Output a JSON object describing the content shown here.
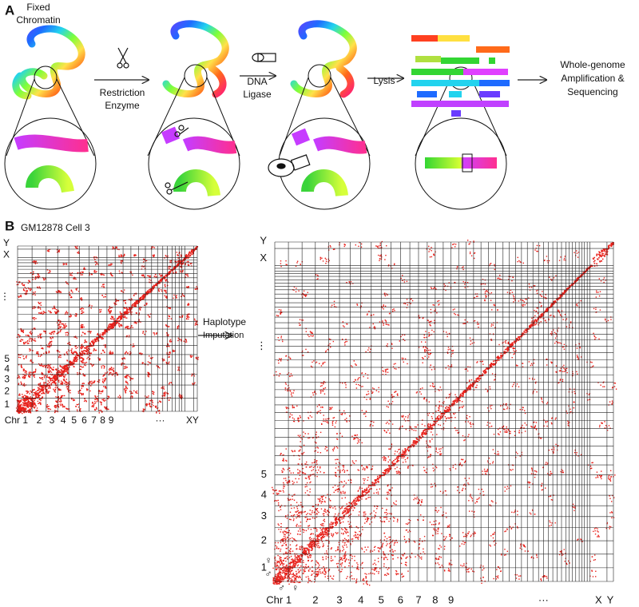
{
  "panel_a": {
    "label": "A",
    "fixed_chromatin": [
      "Fixed",
      "Chromatin"
    ],
    "restriction_enzyme": [
      "Restriction",
      "Enzyme"
    ],
    "dna_ligase": [
      "DNA",
      "Ligase"
    ],
    "lysis": "Lysis",
    "sequencing": [
      "Whole-genome",
      "Amplification &",
      "Sequencing"
    ]
  },
  "panel_b": {
    "label": "B",
    "title": "GM12878 Cell 3",
    "small_map": {
      "y_labels": [
        "Y",
        "X",
        "⋮",
        "5",
        "4",
        "3",
        "2",
        "1"
      ],
      "x_labels": [
        "Chr 1",
        "2",
        "3",
        "4",
        "5",
        "6",
        "7",
        "8",
        "9",
        "···",
        "X",
        "Y"
      ]
    },
    "arrow_label": [
      "Haplotype",
      "Imputation"
    ],
    "large_map": {
      "y_labels": [
        "Y",
        "X",
        "⋮",
        "5",
        "4",
        "3",
        "2",
        "1"
      ],
      "x_labels": [
        "Chr 1",
        "2",
        "3",
        "4",
        "5",
        "6",
        "7",
        "8",
        "9",
        "···",
        "X",
        "Y"
      ],
      "y_haplotypes": [
        "♀",
        "♂"
      ],
      "x_haplotypes": [
        "♂",
        "♀"
      ]
    }
  }
}
